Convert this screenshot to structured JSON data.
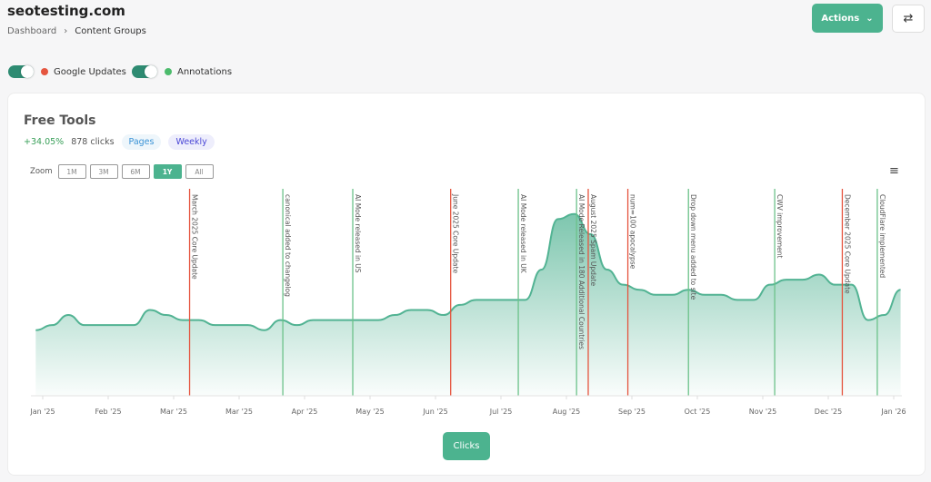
{
  "header": {
    "site": "seotesting.com",
    "breadcrumb": [
      "Dashboard",
      "Content Groups"
    ],
    "actions_label": "Actions",
    "swap_icon": "arrows-swap-icon"
  },
  "toggles": [
    {
      "label": "Google Updates",
      "on": true,
      "color": "#e5553f"
    },
    {
      "label": "Annotations",
      "on": true,
      "color": "#4cbb6c"
    }
  ],
  "card": {
    "title": "Free Tools",
    "change": "+34.05%",
    "clicks": "878 clicks",
    "pill_pages": "Pages",
    "pill_weekly": "Weekly",
    "zoom_label": "Zoom",
    "zoom_options": [
      "1M",
      "3M",
      "6M",
      "1Y",
      "All"
    ],
    "zoom_selected": "1Y",
    "menu_icon": "hamburger-icon",
    "series_button": "Clicks"
  },
  "colors": {
    "line": "#52b393",
    "google_update": "#e5553f",
    "annotation": "#6cc28a",
    "accent": "#4cb38f"
  },
  "chart_data": {
    "type": "area",
    "ylim": [
      0,
      41
    ],
    "grid": false,
    "x_tick_labels": [
      "Jan '25",
      "Feb '25",
      "Mar '25",
      "Mar '25",
      "Apr '25",
      "May '25",
      "Jun '25",
      "Jul '25",
      "Aug '25",
      "Sep '25",
      "Oct '25",
      "Nov '25",
      "Dec '25",
      "Jan '26"
    ],
    "x": [
      "2024-12-29",
      "2025-01-05",
      "2025-01-12",
      "2025-01-19",
      "2025-01-26",
      "2025-02-02",
      "2025-02-09",
      "2025-02-16",
      "2025-02-23",
      "2025-03-02",
      "2025-03-09",
      "2025-03-16",
      "2025-03-23",
      "2025-03-30",
      "2025-04-06",
      "2025-04-13",
      "2025-04-20",
      "2025-04-27",
      "2025-05-04",
      "2025-05-11",
      "2025-05-18",
      "2025-05-25",
      "2025-06-01",
      "2025-06-08",
      "2025-06-15",
      "2025-06-22",
      "2025-06-29",
      "2025-07-06",
      "2025-07-13",
      "2025-07-20",
      "2025-07-27",
      "2025-08-03",
      "2025-08-10",
      "2025-08-17",
      "2025-08-24",
      "2025-08-31",
      "2025-09-07",
      "2025-09-14",
      "2025-09-21",
      "2025-09-28",
      "2025-10-05",
      "2025-10-12",
      "2025-10-19",
      "2025-10-26",
      "2025-11-02",
      "2025-11-09",
      "2025-11-16",
      "2025-11-23",
      "2025-11-30",
      "2025-12-07",
      "2025-12-14",
      "2025-12-21",
      "2025-12-28",
      "2026-01-04"
    ],
    "series": [
      {
        "values": [
          13,
          14,
          16,
          14,
          14,
          14,
          14,
          17,
          16,
          15,
          15,
          14,
          14,
          14,
          13,
          15,
          14,
          15,
          15,
          15,
          15,
          15,
          16,
          17,
          17,
          16,
          18,
          19,
          19,
          19,
          19,
          25,
          35,
          36,
          32,
          25,
          22,
          21,
          20,
          20,
          21,
          20,
          20,
          19,
          19,
          22,
          23,
          23,
          24,
          22,
          22,
          15,
          16,
          21
        ]
      }
    ],
    "annotations": [
      {
        "label": "March 2025 Core Update",
        "date": "2025-03-05",
        "kind": "google"
      },
      {
        "label": "canonical added to changelog",
        "date": "2025-04-14",
        "kind": "note"
      },
      {
        "label": "AI Mode released in US",
        "date": "2025-05-14",
        "kind": "note"
      },
      {
        "label": "June 2025 Core Update",
        "date": "2025-06-25",
        "kind": "google"
      },
      {
        "label": "AI Mode released in UK",
        "date": "2025-07-24",
        "kind": "note"
      },
      {
        "label": "AI Mode Released in 180 Additional Countries",
        "date": "2025-08-18",
        "kind": "note"
      },
      {
        "label": "August 2025 Spam Update",
        "date": "2025-08-23",
        "kind": "google"
      },
      {
        "label": "num=100 apocalypse",
        "date": "2025-09-09",
        "kind": "google"
      },
      {
        "label": "Drop down menu added to site",
        "date": "2025-10-05",
        "kind": "note"
      },
      {
        "label": "CWV improvement",
        "date": "2025-11-11",
        "kind": "note"
      },
      {
        "label": "December 2025 Core Update",
        "date": "2025-12-10",
        "kind": "google"
      },
      {
        "label": "CloudFlare implemented",
        "date": "2025-12-25",
        "kind": "note"
      }
    ]
  }
}
